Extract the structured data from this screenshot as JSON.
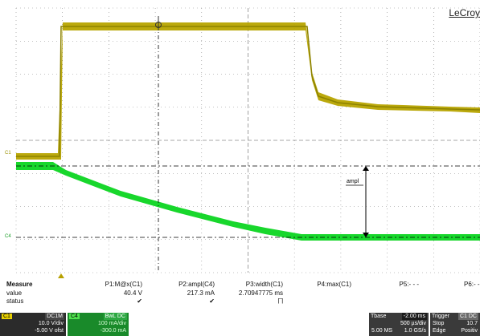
{
  "brand": "LeCroy",
  "colors": {
    "c1": "#9b9100",
    "c1_fill": "#b7a400",
    "c4": "#16d62c",
    "grid": "#8a8a8a",
    "cursor": "#000000"
  },
  "channel_markers": {
    "c1": "C1",
    "c4": "C4"
  },
  "annotation": {
    "label": "ampl"
  },
  "measure": {
    "header": "Measure",
    "row_labels": {
      "value": "value",
      "status": "status"
    },
    "params": [
      {
        "name": "P1:M@x(C1)",
        "value": "40.4 V",
        "status": "✔"
      },
      {
        "name": "P2:ampl(C4)",
        "value": "217.3 mA",
        "status": "✔"
      },
      {
        "name": "P3:width(C1)",
        "value": "2.70947775 ms",
        "status": "⨅"
      },
      {
        "name": "P4:max(C1)",
        "value": "",
        "status": ""
      },
      {
        "name": "P5:- - -",
        "value": "",
        "status": ""
      },
      {
        "name": "P6:- -",
        "value": "",
        "status": ""
      }
    ]
  },
  "channels": {
    "c1": {
      "tag": "C1",
      "coupling": "DC1M",
      "scale": "10.0 V/div",
      "offset": "-5.00 V ofst"
    },
    "c4": {
      "tag": "C4",
      "coupling": "BwL DC",
      "scale": "100 mA/div",
      "offset": "-300.0 mA"
    }
  },
  "timebase": {
    "title": "Tbase",
    "delay": "-2.00 ms",
    "per_div": "500 µs/div",
    "points": "5.00 MS",
    "rate": "1.0 GS/s"
  },
  "trigger": {
    "title": "Trigger",
    "source": "C1 DC",
    "mode": "Stop",
    "level": "10.7",
    "type": "Edge",
    "slope": "Positiv"
  }
}
